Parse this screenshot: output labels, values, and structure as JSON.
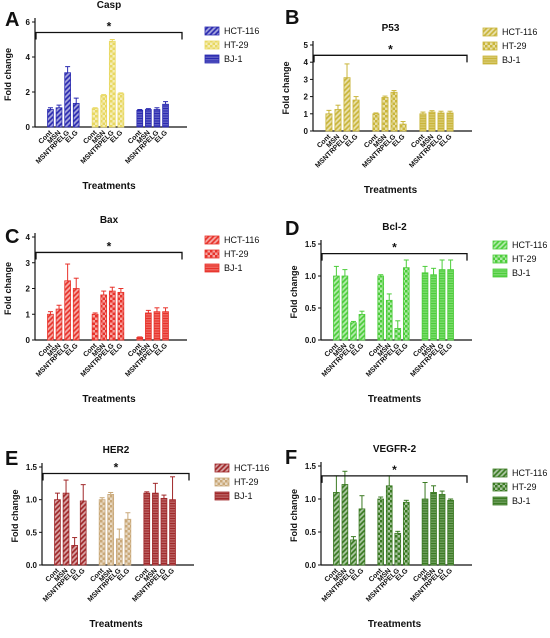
{
  "chart_data": [
    {
      "panel_letter": "A",
      "type": "bar",
      "title": "Casp",
      "xlabel": "Treatments",
      "ylabel": "Fold change",
      "categories": [
        "Cont",
        "MSN",
        "MSNTRPELG",
        "ELG"
      ],
      "series": [
        {
          "name": "HCT-116",
          "values": [
            1.0,
            1.1,
            3.1,
            1.35
          ],
          "errors": [
            0.1,
            0.15,
            0.35,
            0.3
          ]
        },
        {
          "name": "HT-29",
          "values": [
            1.05,
            1.8,
            4.9,
            1.9
          ],
          "errors": [
            0.05,
            0.05,
            0.1,
            0.05
          ]
        },
        {
          "name": "BJ-1",
          "values": [
            0.95,
            1.0,
            1.0,
            1.3
          ],
          "errors": [
            0.05,
            0.05,
            0.1,
            0.15
          ]
        }
      ],
      "yticks": [
        0,
        2,
        4,
        6
      ],
      "ylim": [
        0,
        6
      ],
      "significance": {
        "label": "*",
        "y": 5.4
      },
      "colors": [
        "#2a2ab0",
        "#e8d860",
        "#2a2ab0"
      ],
      "legend_position": "right"
    },
    {
      "panel_letter": "B",
      "type": "bar",
      "title": "P53",
      "xlabel": "Treatments",
      "ylabel": "Fold change",
      "categories": [
        "Cont",
        "MSN",
        "MSNTRPELG",
        "ELG"
      ],
      "series": [
        {
          "name": "HCT-116",
          "values": [
            1.0,
            1.25,
            3.1,
            1.8
          ],
          "errors": [
            0.2,
            0.25,
            0.8,
            0.2
          ]
        },
        {
          "name": "HT-29",
          "values": [
            1.0,
            1.95,
            2.25,
            0.4
          ],
          "errors": [
            0.05,
            0.08,
            0.1,
            0.15
          ]
        },
        {
          "name": "BJ-1",
          "values": [
            1.0,
            1.1,
            1.05,
            1.05
          ],
          "errors": [
            0.1,
            0.08,
            0.1,
            0.1
          ]
        }
      ],
      "yticks": [
        0,
        1,
        2,
        3,
        4,
        5
      ],
      "ylim": [
        0,
        5
      ],
      "significance": {
        "label": "*",
        "y": 4.4
      },
      "colors": [
        "#c9b53a",
        "#c9b53a",
        "#c9b53a"
      ],
      "legend_position": "right"
    },
    {
      "panel_letter": "C",
      "type": "bar",
      "title": "Bax",
      "xlabel": "Treatments",
      "ylabel": "Fold change",
      "categories": [
        "Cont",
        "MSN",
        "MSNTRPELG",
        "ELG"
      ],
      "series": [
        {
          "name": "HCT-116",
          "values": [
            1.0,
            1.2,
            2.3,
            2.0
          ],
          "errors": [
            0.1,
            0.15,
            0.65,
            0.4
          ]
        },
        {
          "name": "HT-29",
          "values": [
            1.0,
            1.75,
            1.9,
            1.85
          ],
          "errors": [
            0.05,
            0.15,
            0.15,
            0.15
          ]
        },
        {
          "name": "BJ-1",
          "values": [
            0.1,
            1.05,
            1.1,
            1.1
          ],
          "errors": [
            0.02,
            0.1,
            0.15,
            0.15
          ]
        }
      ],
      "yticks": [
        0,
        1,
        2,
        3,
        4
      ],
      "ylim": [
        0,
        4
      ],
      "significance": {
        "label": "*",
        "y": 3.4
      },
      "colors": [
        "#e8322a",
        "#e8322a",
        "#e8322a"
      ],
      "legend_position": "right"
    },
    {
      "panel_letter": "D",
      "type": "bar",
      "title": "Bcl-2",
      "xlabel": "Treatments",
      "ylabel": "Fold change",
      "categories": [
        "Cont",
        "MSN",
        "MSNTRPELG",
        "ELG"
      ],
      "series": [
        {
          "name": "HCT-116",
          "values": [
            1.0,
            1.0,
            0.27,
            0.4
          ],
          "errors": [
            0.15,
            0.1,
            0.02,
            0.05
          ]
        },
        {
          "name": "HT-29",
          "values": [
            1.0,
            0.62,
            0.18,
            1.13
          ],
          "errors": [
            0.02,
            0.1,
            0.12,
            0.12
          ]
        },
        {
          "name": "BJ-1",
          "values": [
            1.05,
            1.02,
            1.1,
            1.1
          ],
          "errors": [
            0.1,
            0.1,
            0.15,
            0.15
          ]
        }
      ],
      "yticks": [
        0.0,
        0.5,
        1.0,
        1.5
      ],
      "ylim": [
        0,
        1.5
      ],
      "significance": {
        "label": "*",
        "y": 1.35
      },
      "colors": [
        "#4ccd3a",
        "#4ccd3a",
        "#4ccd3a"
      ],
      "legend_position": "right"
    },
    {
      "panel_letter": "E",
      "type": "bar",
      "title": "HER2",
      "xlabel": "Treatments",
      "ylabel": "Fold change",
      "categories": [
        "Cont",
        "MSN",
        "MSNTRPELG",
        "ELG"
      ],
      "series": [
        {
          "name": "HCT-116",
          "values": [
            1.0,
            1.1,
            0.3,
            0.98
          ],
          "errors": [
            0.1,
            0.2,
            0.12,
            0.25
          ]
        },
        {
          "name": "HT-29",
          "values": [
            1.0,
            1.08,
            0.4,
            0.7
          ],
          "errors": [
            0.03,
            0.03,
            0.15,
            0.1
          ]
        },
        {
          "name": "BJ-1",
          "values": [
            1.1,
            1.1,
            1.02,
            1.0
          ],
          "errors": [
            0.02,
            0.15,
            0.05,
            0.35
          ]
        }
      ],
      "yticks": [
        0.0,
        0.5,
        1.0,
        1.5
      ],
      "ylim": [
        0,
        1.5
      ],
      "significance": {
        "label": "*",
        "y": 1.4
      },
      "colors": [
        "#a0282a",
        "#c9a878",
        "#a0282a"
      ],
      "legend_position": "right"
    },
    {
      "panel_letter": "F",
      "type": "bar",
      "title": "VEGFR-2",
      "xlabel": "Treatments",
      "ylabel": "Fold change",
      "categories": [
        "Cont",
        "MSN",
        "MSNTRPELG",
        "ELG"
      ],
      "series": [
        {
          "name": "HCT-116",
          "values": [
            1.1,
            1.22,
            0.38,
            0.85
          ],
          "errors": [
            0.25,
            0.2,
            0.05,
            0.2
          ]
        },
        {
          "name": "HT-29",
          "values": [
            1.0,
            1.2,
            0.48,
            0.95
          ],
          "errors": [
            0.03,
            0.15,
            0.03,
            0.03
          ]
        },
        {
          "name": "BJ-1",
          "values": [
            1.0,
            1.1,
            1.07,
            0.98
          ],
          "errors": [
            0.25,
            0.1,
            0.05,
            0.02
          ]
        }
      ],
      "yticks": [
        0.0,
        0.5,
        1.0,
        1.5
      ],
      "ylim": [
        0,
        1.5
      ],
      "significance": {
        "label": "*",
        "y": 1.35
      },
      "colors": [
        "#3a7a22",
        "#3a7a22",
        "#3a7a22"
      ],
      "legend_position": "right"
    }
  ]
}
